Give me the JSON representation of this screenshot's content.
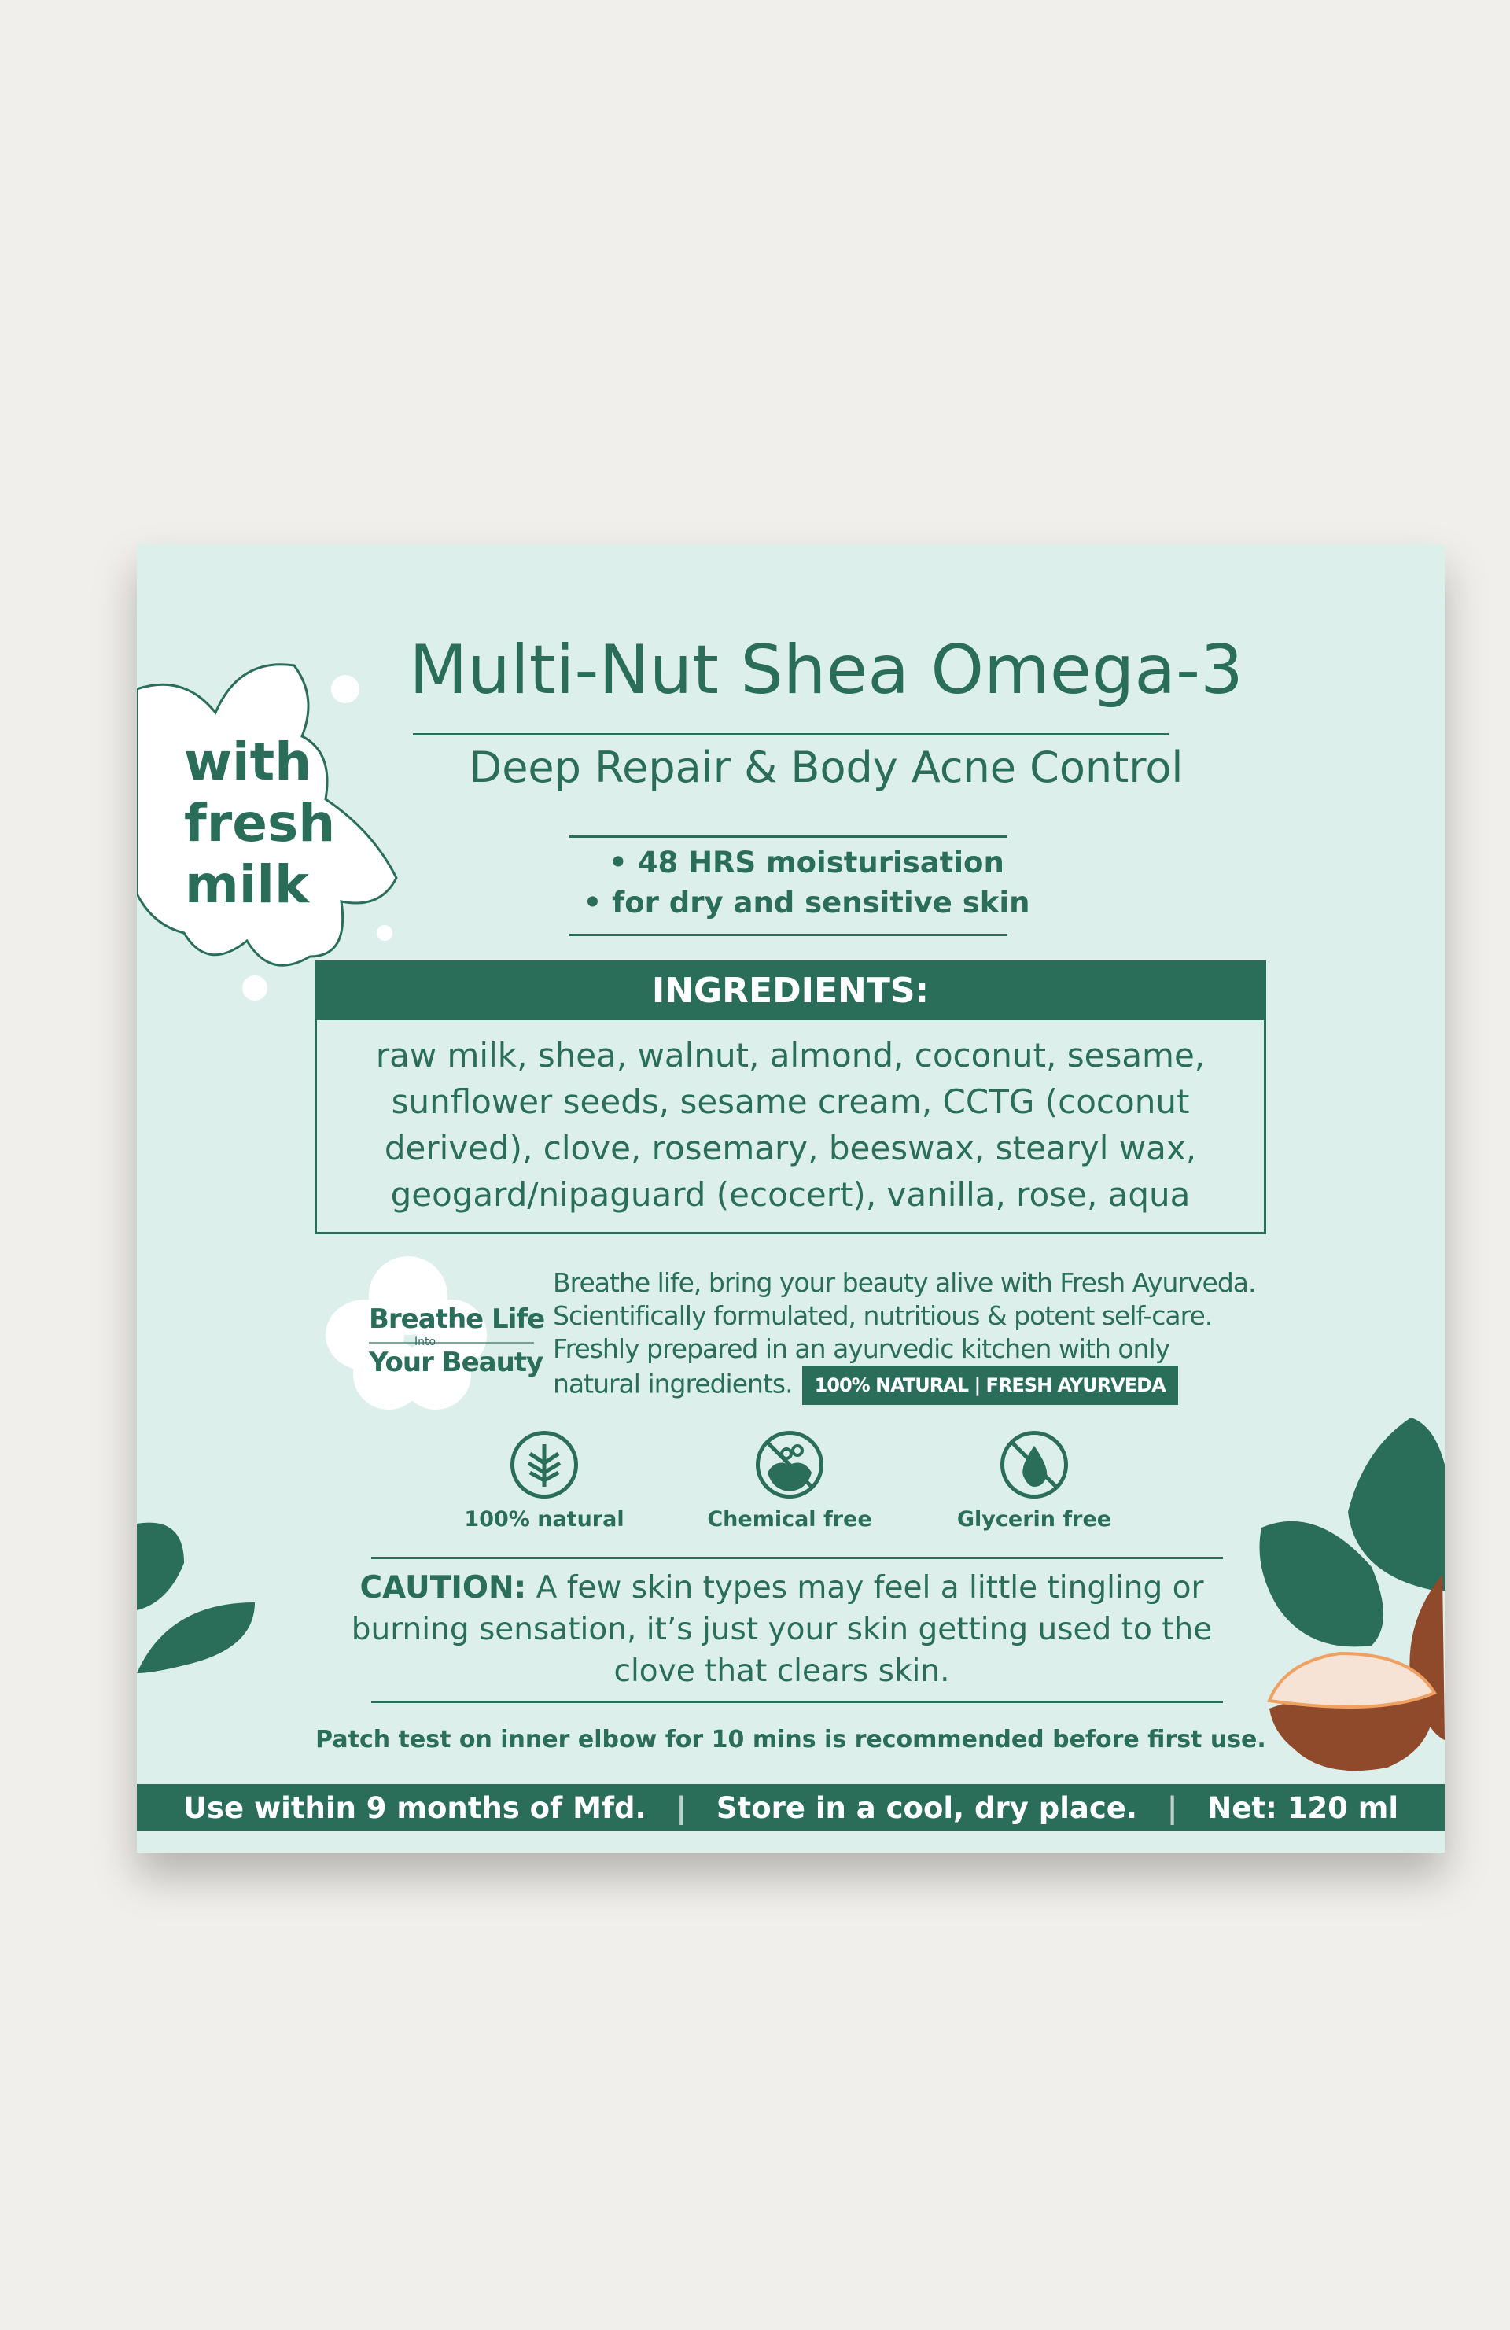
{
  "product": {
    "title": "Multi-Nut Shea Omega-3",
    "subtitle": "Deep Repair & Body Acne Control",
    "bullets": [
      "• 48 HRS moisturisation",
      "• for dry and sensitive skin"
    ]
  },
  "badge_splash": {
    "line1": "with",
    "line2": "fresh",
    "line3": "milk"
  },
  "ingredients": {
    "heading": "INGREDIENTS:",
    "text": "raw milk, shea, walnut, almond, coconut, sesame, sunflower seeds, sesame cream, CCTG (coconut derived), clove, rosemary, beeswax, stearyl wax, geogard/nipaguard (ecocert), vanilla, rose, aqua"
  },
  "brand": {
    "logo_line1": "Breathe Life",
    "logo_line2": "Into",
    "logo_line3": "Your Beauty",
    "lines": [
      "Breathe life, bring your beauty alive with Fresh Ayurveda.",
      "Scientifically formulated, nutritious & potent self-care.",
      "Freshly prepared in an ayurvedic kitchen with only",
      "natural ingredients."
    ],
    "tag": "100% NATURAL  |  FRESH AYURVEDA"
  },
  "features": [
    {
      "icon": "leaf-icon",
      "label": "100% natural"
    },
    {
      "icon": "no-chemical-icon",
      "label": "Chemical free"
    },
    {
      "icon": "no-drop-icon",
      "label": "Glycerin free"
    }
  ],
  "caution": {
    "label": "CAUTION:",
    "text": " A few skin types may feel a little tingling or burning sensation, it’s just your skin getting used to the clove that clears skin."
  },
  "patch_test": "Patch test on inner elbow for 10 mins is recommended before first use.",
  "footer": {
    "shelf_life": "Use within 9 months of Mfd.",
    "separator": "|",
    "storage": "Store in a cool, dry place.",
    "net": "Net: 120 ml"
  },
  "colors": {
    "brand_green": "#2a6e5a",
    "label_bg": "#dcefea",
    "page_bg": "#f0efeb",
    "nut_brown": "#8f4a2c"
  }
}
